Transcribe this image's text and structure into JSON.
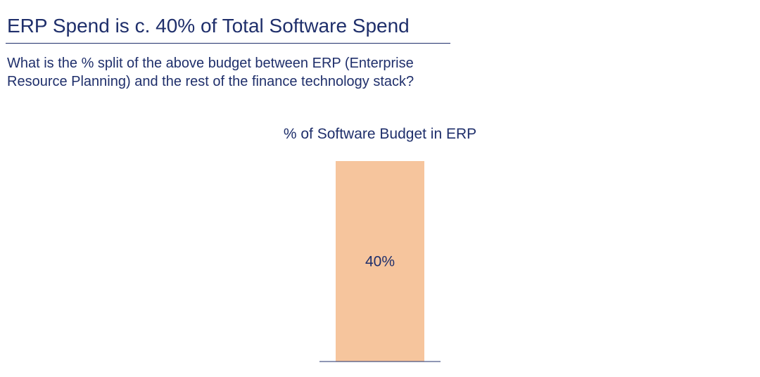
{
  "slide": {
    "title": "ERP Spend is c. 40% of Total Software Spend",
    "question": "What is the % split of the above budget between ERP (Enterprise Resource Planning) and the rest of the finance technology stack?"
  },
  "chart_data": {
    "type": "bar",
    "title": "% of Software Budget in ERP",
    "categories": [
      ""
    ],
    "values": [
      40
    ],
    "data_labels": [
      "40%"
    ],
    "xlabel": "",
    "ylabel": "",
    "ylim": [
      0,
      40
    ],
    "grid": false,
    "legend": "none",
    "colors": {
      "bar": "#f6c59d",
      "text": "#1f2f6b",
      "baseline": "#1f2f6b"
    }
  }
}
